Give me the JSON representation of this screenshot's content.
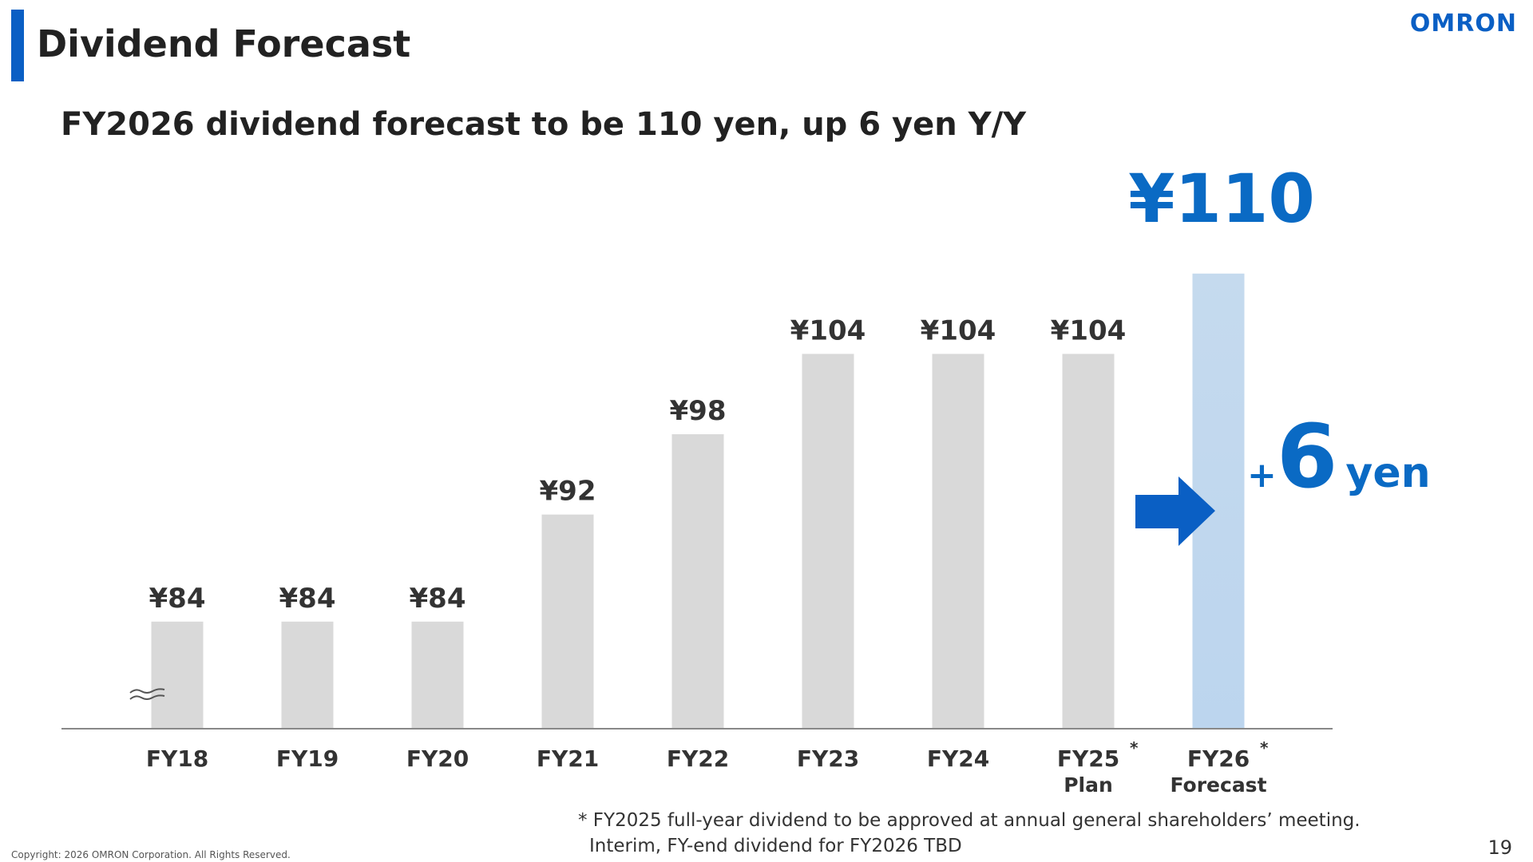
{
  "slide": {
    "title": "Dividend Forecast",
    "logo": "OMRON",
    "subtitle": "FY2026 dividend forecast to be 110 yen, up 6 yen Y/Y",
    "footnote_line1": "* FY2025 full-year dividend to be approved at annual general shareholders’ meeting.",
    "footnote_line2": "Interim, FY-end dividend for FY2026 TBD",
    "copyright": "Copyright: 2026 OMRON Corporation. All Rights Reserved.",
    "page_number": "19"
  },
  "callout": {
    "headline_value": "¥110",
    "change_plus": "+",
    "change_value": "6",
    "change_unit": "yen"
  },
  "colors": {
    "accent": "#0a5fc4",
    "bar": "#d9d9d9",
    "highlight_bar_top": "#c5daee",
    "highlight_bar_bottom": "#bcd5ee",
    "arrow": "#0a5fc4"
  },
  "chart_data": {
    "type": "bar",
    "categories": [
      "FY18",
      "FY19",
      "FY20",
      "FY21",
      "FY22",
      "FY23",
      "FY24",
      "FY25",
      "FY26"
    ],
    "category_sublabels": [
      "",
      "",
      "",
      "",
      "",
      "",
      "",
      "Plan",
      "Forecast"
    ],
    "category_marks": [
      "",
      "",
      "",
      "",
      "",
      "",
      "",
      "*",
      "*"
    ],
    "values": [
      84,
      84,
      84,
      92,
      98,
      104,
      104,
      104,
      110
    ],
    "value_labels": [
      "¥84",
      "¥84",
      "¥84",
      "¥92",
      "¥98",
      "¥104",
      "¥104",
      "¥104",
      ""
    ],
    "highlight_index": 8,
    "axis_break": true,
    "ylim": [
      76,
      111
    ],
    "title": "",
    "xlabel": "",
    "ylabel": "",
    "grid": false,
    "legend": "none"
  }
}
